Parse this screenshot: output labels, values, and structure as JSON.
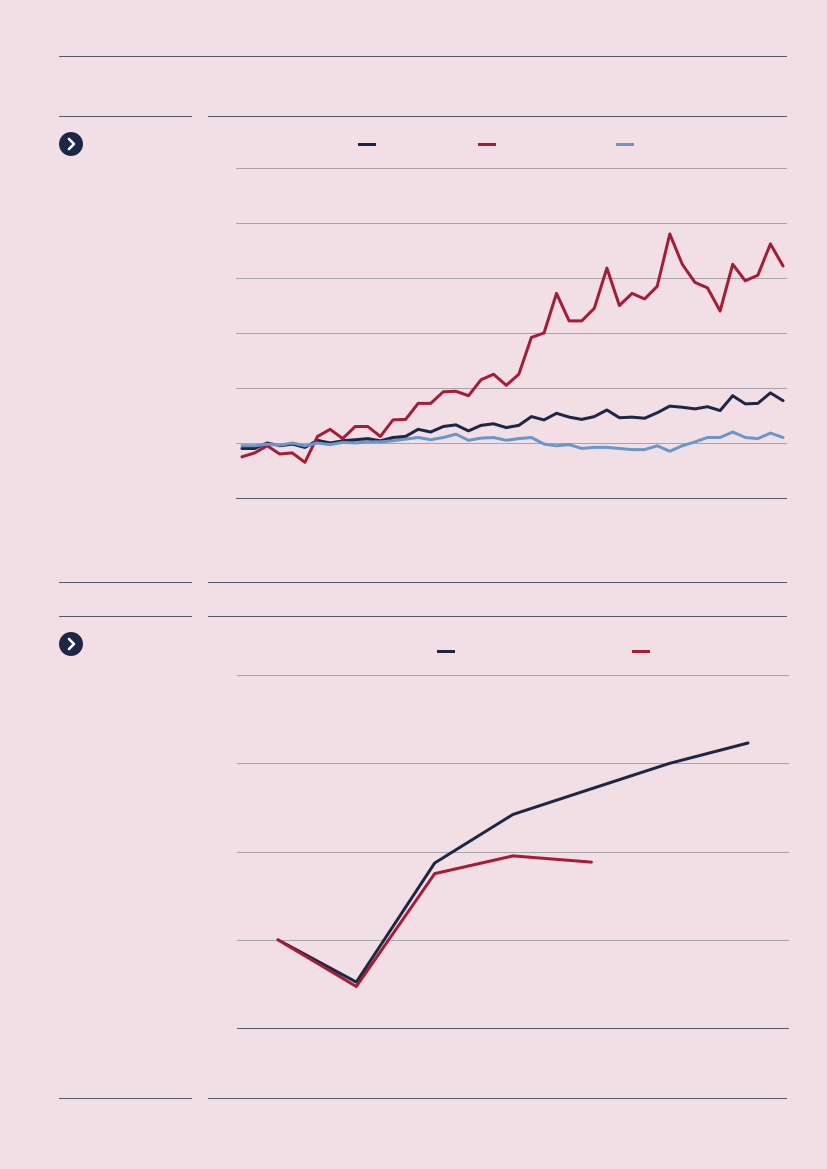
{
  "colors": {
    "navy": "#1c2645",
    "crimson": "#a51c36",
    "light_blue": "#6a97c9",
    "background": "#f2dfe6",
    "gridline": "#a9a4a8",
    "rule": "#555a66"
  },
  "icons": {
    "figure_marker": "chevron-right-circle-icon"
  },
  "chart_data": [
    {
      "type": "line",
      "title": "",
      "xlabel": "",
      "ylabel": "",
      "legend_position": "top",
      "grid": true,
      "ylim": [
        -1,
        5
      ],
      "x": [
        1,
        2,
        3,
        4,
        5,
        6,
        7,
        8,
        9,
        10,
        11,
        12,
        13,
        14,
        15,
        16,
        17,
        18,
        19,
        20,
        21,
        22,
        23,
        24,
        25,
        26,
        27,
        28,
        29,
        30,
        31,
        32,
        33,
        34,
        35,
        36,
        37,
        38,
        39,
        40,
        41,
        42,
        43,
        44
      ],
      "series": [
        {
          "color": "#1c2645",
          "values": [
            -0.1,
            -0.1,
            0.0,
            -0.05,
            -0.02,
            -0.08,
            0.05,
            0.0,
            0.04,
            0.06,
            0.08,
            0.04,
            0.1,
            0.12,
            0.25,
            0.2,
            0.3,
            0.33,
            0.22,
            0.32,
            0.35,
            0.28,
            0.32,
            0.48,
            0.42,
            0.54,
            0.47,
            0.43,
            0.48,
            0.6,
            0.46,
            0.47,
            0.45,
            0.55,
            0.67,
            0.65,
            0.62,
            0.66,
            0.59,
            0.86,
            0.71,
            0.72,
            0.91,
            0.77
          ]
        },
        {
          "color": "#a51c36",
          "values": [
            -0.25,
            -0.18,
            -0.05,
            -0.2,
            -0.18,
            -0.35,
            0.12,
            0.25,
            0.08,
            0.3,
            0.3,
            0.12,
            0.42,
            0.43,
            0.72,
            0.72,
            0.93,
            0.94,
            0.86,
            1.15,
            1.25,
            1.05,
            1.25,
            1.92,
            2.0,
            2.72,
            2.22,
            2.22,
            2.45,
            3.18,
            2.5,
            2.72,
            2.62,
            2.85,
            3.8,
            3.25,
            2.92,
            2.82,
            2.4,
            3.25,
            2.95,
            3.05,
            3.62,
            3.22
          ]
        },
        {
          "color": "#6a97c9",
          "values": [
            -0.05,
            -0.05,
            -0.02,
            -0.04,
            0.0,
            -0.05,
            0.0,
            -0.03,
            0.01,
            0.0,
            0.02,
            0.02,
            0.04,
            0.07,
            0.1,
            0.06,
            0.1,
            0.16,
            0.05,
            0.09,
            0.1,
            0.05,
            0.08,
            0.1,
            -0.02,
            -0.05,
            -0.03,
            -0.1,
            -0.08,
            -0.08,
            -0.1,
            -0.12,
            -0.12,
            -0.05,
            -0.15,
            -0.05,
            0.02,
            0.1,
            0.1,
            0.2,
            0.1,
            0.08,
            0.18,
            0.1
          ]
        }
      ]
    },
    {
      "type": "line",
      "title": "",
      "xlabel": "",
      "ylabel": "",
      "legend_position": "top",
      "grid": true,
      "ylim": [
        0,
        4
      ],
      "x": [
        1,
        2,
        3,
        4,
        5,
        6,
        7
      ],
      "series": [
        {
          "color": "#1c2645",
          "values": [
            1.0,
            0.52,
            1.87,
            2.42,
            2.71,
            3.0,
            3.23
          ]
        },
        {
          "color": "#a51c36",
          "values": [
            1.0,
            0.47,
            1.75,
            1.95,
            1.88,
            null,
            null
          ]
        }
      ]
    }
  ]
}
